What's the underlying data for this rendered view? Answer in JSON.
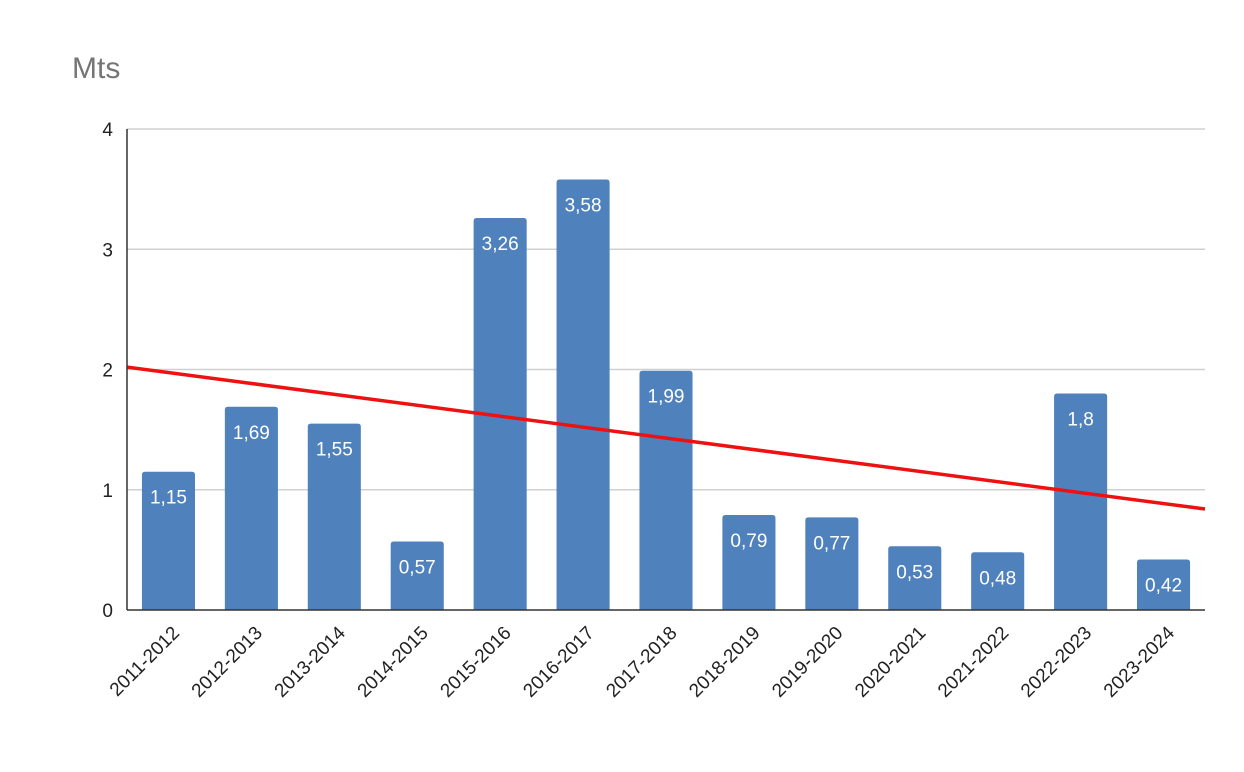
{
  "chart_data": {
    "type": "bar",
    "title": "Mts",
    "xlabel": "",
    "ylabel": "",
    "ylim": [
      0,
      4
    ],
    "yticks": [
      "0",
      "1",
      "2",
      "3",
      "4"
    ],
    "grid": true,
    "categories": [
      "2011-2012",
      "2012-2013",
      "2013-2014",
      "2014-2015",
      "2015-2016",
      "2016-2017",
      "2017-2018",
      "2018-2019",
      "2019-2020",
      "2020-2021",
      "2021-2022",
      "2022-2023",
      "2023-2024"
    ],
    "values": [
      1.15,
      1.69,
      1.55,
      0.57,
      3.26,
      3.58,
      1.99,
      0.79,
      0.77,
      0.53,
      0.48,
      1.8,
      0.42
    ],
    "data_labels": [
      "1,15",
      "1,69",
      "1,55",
      "0,57",
      "3,26",
      "3,58",
      "1,99",
      "0,79",
      "0,77",
      "0,53",
      "0,48",
      "1,8",
      "0,42"
    ],
    "trendline": {
      "type": "linear",
      "start_value": 2.02,
      "end_value": 0.84
    },
    "colors": {
      "bar": "#4f81bd",
      "trendline": "#ee1111",
      "grid": "#d0d0d0",
      "axis": "#333333"
    }
  }
}
